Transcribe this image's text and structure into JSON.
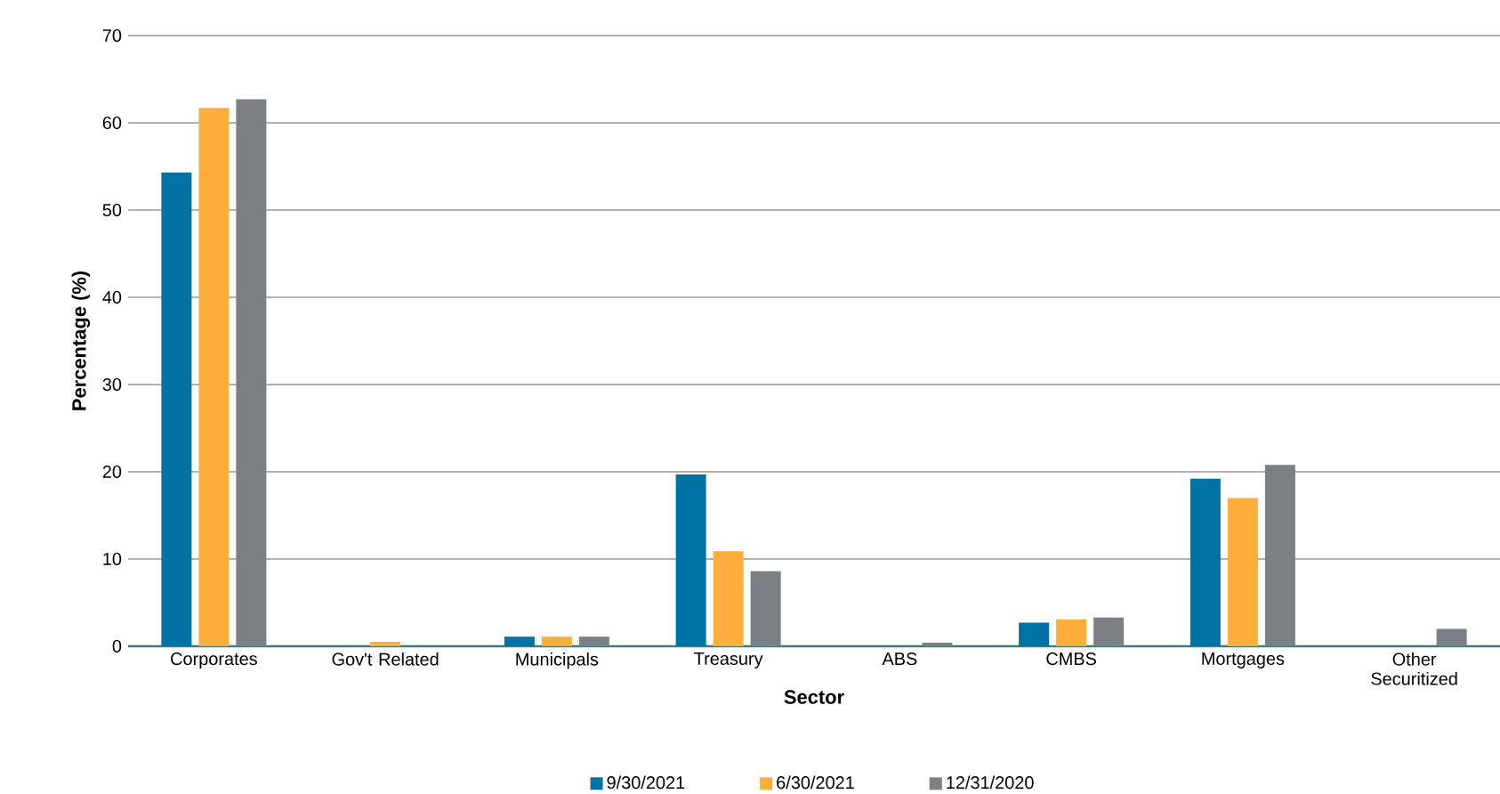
{
  "chart_data": {
    "type": "bar",
    "xlabel": "Sector",
    "ylabel": "Percentage (%)",
    "categories": [
      "Corporates",
      "Gov't Related",
      "Municipals",
      "Treasury",
      "ABS",
      "CMBS",
      "Mortgages",
      "Other Securitized"
    ],
    "series": [
      {
        "name": "9/30/2021",
        "color": "#0072a3",
        "values": [
          54.3,
          0,
          1.1,
          19.7,
          0,
          2.7,
          19.2,
          0
        ]
      },
      {
        "name": "6/30/2021",
        "color": "#ffad3b",
        "values": [
          61.7,
          0.5,
          1.1,
          10.9,
          0,
          3.1,
          17.0,
          0
        ]
      },
      {
        "name": "12/31/2020",
        "color": "#7c7f83",
        "values": [
          62.7,
          0,
          1.1,
          8.6,
          0.4,
          3.3,
          20.8,
          2.0
        ]
      }
    ],
    "ylim": [
      0,
      70
    ],
    "yticks": [
      0,
      10,
      20,
      30,
      40,
      50,
      60,
      70
    ],
    "grid": "y",
    "legend": "bottom"
  }
}
